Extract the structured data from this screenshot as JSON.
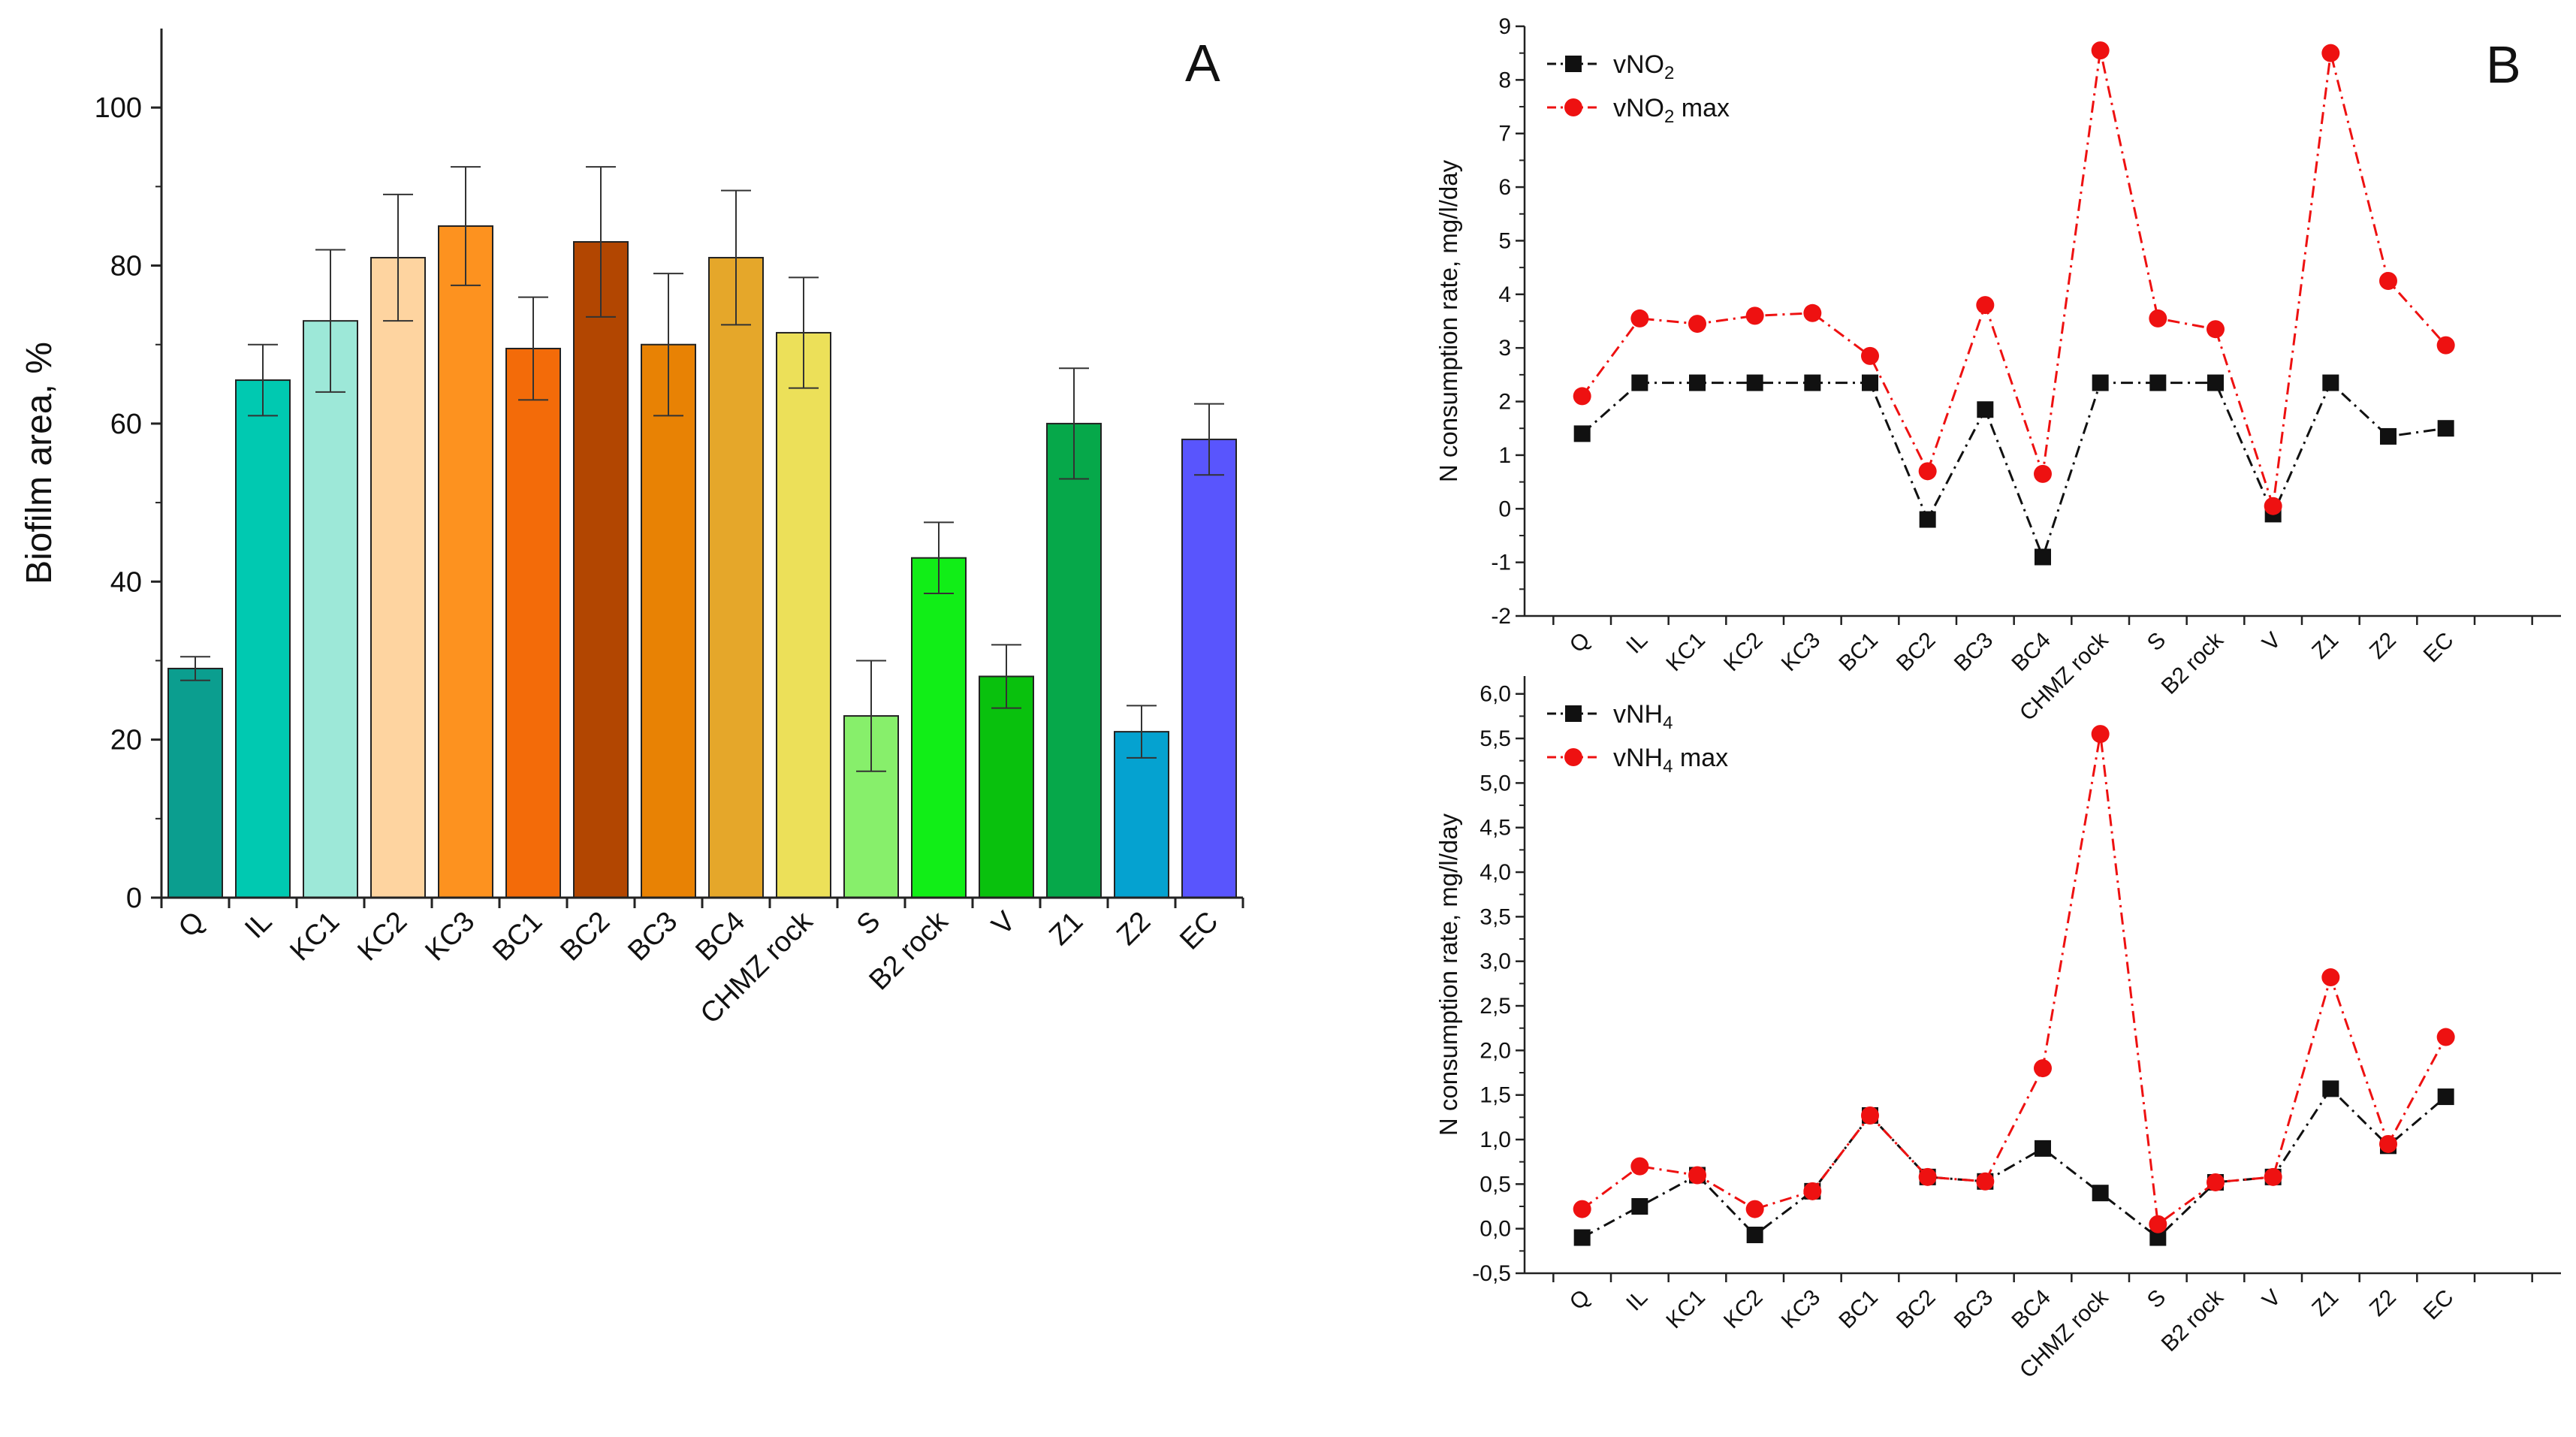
{
  "chart_data": [
    {
      "type": "bar",
      "panel_label": "A",
      "title": "",
      "xlabel": "",
      "ylabel": "Biofilm area, %",
      "ylim": [
        0,
        110
      ],
      "yticks": [
        0,
        20,
        40,
        60,
        80,
        100
      ],
      "categories": [
        "Q",
        "IL",
        "KC1",
        "KC2",
        "KC3",
        "BC1",
        "BC2",
        "BC3",
        "BC4",
        "CHMZ rock",
        "S",
        "B2 rock",
        "V",
        "Z1",
        "Z2",
        "EC"
      ],
      "values": [
        29,
        65.5,
        73,
        81,
        85,
        69.5,
        83,
        70,
        81,
        71.5,
        23,
        43,
        28,
        60,
        21,
        58
      ],
      "errors": [
        1.5,
        4.5,
        9,
        8,
        7.5,
        6.5,
        9.5,
        9,
        8.5,
        7,
        7,
        4.5,
        4,
        7,
        3.3,
        4.5
      ],
      "colors": [
        "#0b9e8f",
        "#00c9b1",
        "#9de8d8",
        "#fed4a0",
        "#fd921f",
        "#f36b09",
        "#b24601",
        "#e88204",
        "#e5a72a",
        "#ece059",
        "#87ef6b",
        "#11ee17",
        "#09c10d",
        "#06a84a",
        "#05a2d0",
        "#5955fd"
      ],
      "grid": false
    },
    {
      "type": "line",
      "panel_label": "B",
      "title": "",
      "xlabel": "",
      "ylabel": "N consumption rate, mg/l/day",
      "ylim": [
        -2,
        9
      ],
      "yticks": [
        -2,
        -1,
        0,
        1,
        2,
        3,
        4,
        5,
        6,
        7,
        8,
        9
      ],
      "categories": [
        "Q",
        "IL",
        "KC1",
        "KC2",
        "KC3",
        "BC1",
        "BC2",
        "BC3",
        "BC4",
        "CHMZ rock",
        "S",
        "B2 rock",
        "V",
        "Z1",
        "Z2",
        "EC"
      ],
      "legend_position": "top-left",
      "series": [
        {
          "name": "vNO",
          "subscript": "2",
          "suffix": "",
          "marker": "square",
          "color": "#111111",
          "values": [
            1.4,
            2.35,
            2.35,
            2.35,
            2.35,
            2.35,
            -0.2,
            1.85,
            -0.9,
            2.35,
            2.35,
            2.35,
            -0.1,
            2.35,
            1.35,
            1.5
          ]
        },
        {
          "name": "vNO",
          "subscript": "2",
          "suffix": " max",
          "marker": "circle",
          "color": "#ee1111",
          "values": [
            2.1,
            3.55,
            3.45,
            3.6,
            3.65,
            2.85,
            0.7,
            3.8,
            0.65,
            8.55,
            3.55,
            3.35,
            0.05,
            8.5,
            4.25,
            3.05
          ]
        }
      ],
      "grid": false
    },
    {
      "type": "line",
      "panel_label": "",
      "title": "",
      "xlabel": "",
      "ylabel": "N consumption rate, mg/l/day",
      "ylim": [
        -0.5,
        6.2
      ],
      "yticks": [
        -0.5,
        0.0,
        0.5,
        1.0,
        1.5,
        2.0,
        2.5,
        3.0,
        3.5,
        4.0,
        4.5,
        5.0,
        5.5,
        6.0
      ],
      "ytick_labels": [
        "-0,5",
        "0,0",
        "0,5",
        "1,0",
        "1,5",
        "2,0",
        "2,5",
        "3,0",
        "3,5",
        "4,0",
        "4,5",
        "5,0",
        "5,5",
        "6,0"
      ],
      "categories": [
        "Q",
        "IL",
        "KC1",
        "KC2",
        "KC3",
        "BC1",
        "BC2",
        "BC3",
        "BC4",
        "CHMZ rock",
        "S",
        "B2 rock",
        "V",
        "Z1",
        "Z2",
        "EC"
      ],
      "legend_position": "top-left",
      "series": [
        {
          "name": "vNH",
          "subscript": "4",
          "suffix": "",
          "marker": "square",
          "color": "#111111",
          "values": [
            -0.1,
            0.25,
            0.6,
            -0.07,
            0.42,
            1.27,
            0.58,
            0.53,
            0.9,
            0.4,
            -0.1,
            0.52,
            0.58,
            1.57,
            0.93,
            1.48
          ]
        },
        {
          "name": "vNH",
          "subscript": "4",
          "suffix": " max",
          "marker": "circle",
          "color": "#ee1111",
          "values": [
            0.22,
            0.7,
            0.6,
            0.22,
            0.42,
            1.27,
            0.58,
            0.53,
            1.8,
            5.55,
            0.05,
            0.52,
            0.58,
            2.82,
            0.95,
            2.15
          ]
        }
      ],
      "grid": false
    }
  ]
}
